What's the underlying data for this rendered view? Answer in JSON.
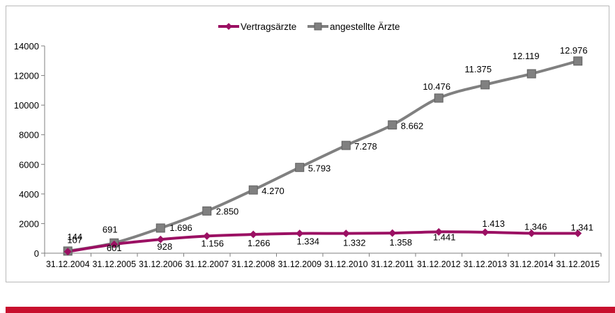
{
  "chart_data": {
    "type": "line",
    "categories": [
      "31.12.2004",
      "31.12.2005",
      "31.12.2006",
      "31.12.2007",
      "31.12.2008",
      "31.12.2009",
      "31.12.2010",
      "31.12.2011",
      "31.12.2012",
      "31.12.2013",
      "31.12.2014",
      "31.12.2015"
    ],
    "series": [
      {
        "name": "Vertragsärzte",
        "color": "#9b1063",
        "marker": "diamond",
        "values": [
          107,
          601,
          928,
          1156,
          1266,
          1334,
          1332,
          1358,
          1441,
          1413,
          1346,
          1341
        ],
        "labels": [
          "107",
          "601",
          "928",
          "1.156",
          "1.266",
          "1.334",
          "1.332",
          "1.358",
          "1.441",
          "1.413",
          "1.346",
          "1.341"
        ]
      },
      {
        "name": "angestellte Ärzte",
        "color": "#808080",
        "marker": "square",
        "values": [
          144,
          691,
          1696,
          2850,
          4270,
          5793,
          7278,
          8662,
          10476,
          11375,
          12119,
          12976
        ],
        "labels": [
          "144",
          "691",
          "1.696",
          "2.850",
          "4.270",
          "5.793",
          "7.278",
          "8.662",
          "10.476",
          "11.375",
          "12.119",
          "12.976"
        ]
      }
    ],
    "ylim": [
      0,
      14000
    ],
    "yticks": [
      "0",
      "2000",
      "4000",
      "6000",
      "8000",
      "10000",
      "12000",
      "14000"
    ],
    "ytick_values": [
      0,
      2000,
      4000,
      6000,
      8000,
      10000,
      12000,
      14000
    ],
    "grid": false,
    "legend": "top-center",
    "title": "",
    "xlabel": "",
    "ylabel": ""
  },
  "colors": {
    "frame": "#b9b9b9",
    "axis": "#7f7f7f",
    "bottom_bar": "#c8102e"
  }
}
